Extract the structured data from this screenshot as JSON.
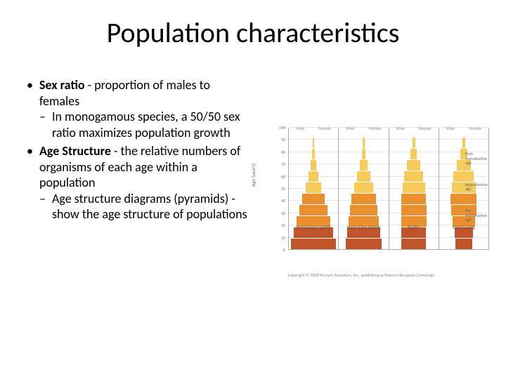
{
  "title": "Population characteristics",
  "bullets": [
    {
      "term": "Sex ratio",
      "rest": " - proportion of males to females",
      "sub": [
        "In monogamous species, a 50/50 sex ratio maximizes population growth"
      ]
    },
    {
      "term": "Age Structure",
      "rest": " - the relative numbers of organisms of each age within a population",
      "sub": [
        "Age structure diagrams (pyramids) - show the age structure of populations"
      ]
    }
  ],
  "figure": {
    "type": "pyramid-small-multiples",
    "background_color": "#ffffff",
    "axis_color": "#aaaaaa",
    "grid_color": "#e6e6e6",
    "text_color": "#666666",
    "ylabel": "Age (years)",
    "ylim": [
      0,
      100
    ],
    "ytick_step": 10,
    "yticks": [
      0,
      10,
      20,
      30,
      40,
      50,
      60,
      70,
      80,
      90,
      100
    ],
    "head_male": "Male",
    "head_female": "Female",
    "age_band_colors": {
      "pre_reproductive": "#c0532a",
      "reproductive": "#e98f2e",
      "post_reproductive": "#f7cb5a"
    },
    "age_band_breaks": [
      15,
      45
    ],
    "legend": {
      "post": "Post-reproductive age",
      "repro": "Reproductive age",
      "pre": "Pre-reproductive age"
    },
    "panels": [
      {
        "caption": "Increasing rapidly",
        "bars": [
          {
            "age": 0,
            "m": 48,
            "f": 48
          },
          {
            "age": 10,
            "m": 42,
            "f": 42
          },
          {
            "age": 20,
            "m": 36,
            "f": 36
          },
          {
            "age": 30,
            "m": 30,
            "f": 30
          },
          {
            "age": 40,
            "m": 24,
            "f": 24
          },
          {
            "age": 50,
            "m": 17,
            "f": 17
          },
          {
            "age": 60,
            "m": 11,
            "f": 11
          },
          {
            "age": 70,
            "m": 6,
            "f": 6
          },
          {
            "age": 80,
            "m": 3,
            "f": 3
          },
          {
            "age": 90,
            "m": 1,
            "f": 1
          }
        ]
      },
      {
        "caption": "Increasing slowly",
        "bars": [
          {
            "age": 0,
            "m": 38,
            "f": 38
          },
          {
            "age": 10,
            "m": 36,
            "f": 36
          },
          {
            "age": 20,
            "m": 33,
            "f": 33
          },
          {
            "age": 30,
            "m": 30,
            "f": 30
          },
          {
            "age": 40,
            "m": 26,
            "f": 26
          },
          {
            "age": 50,
            "m": 20,
            "f": 20
          },
          {
            "age": 60,
            "m": 14,
            "f": 14
          },
          {
            "age": 70,
            "m": 8,
            "f": 8
          },
          {
            "age": 80,
            "m": 4,
            "f": 4
          },
          {
            "age": 90,
            "m": 2,
            "f": 2
          }
        ]
      },
      {
        "caption": "Stable",
        "bars": [
          {
            "age": 0,
            "m": 26,
            "f": 26
          },
          {
            "age": 10,
            "m": 26,
            "f": 26
          },
          {
            "age": 20,
            "m": 27,
            "f": 27
          },
          {
            "age": 30,
            "m": 27,
            "f": 27
          },
          {
            "age": 40,
            "m": 26,
            "f": 26
          },
          {
            "age": 50,
            "m": 24,
            "f": 24
          },
          {
            "age": 60,
            "m": 20,
            "f": 20
          },
          {
            "age": 70,
            "m": 14,
            "f": 14
          },
          {
            "age": 80,
            "m": 7,
            "f": 7
          },
          {
            "age": 90,
            "m": 3,
            "f": 3
          }
        ]
      },
      {
        "caption": "Decreasing",
        "bars": [
          {
            "age": 0,
            "m": 18,
            "f": 18
          },
          {
            "age": 10,
            "m": 20,
            "f": 20
          },
          {
            "age": 20,
            "m": 24,
            "f": 24
          },
          {
            "age": 30,
            "m": 27,
            "f": 27
          },
          {
            "age": 40,
            "m": 28,
            "f": 28
          },
          {
            "age": 50,
            "m": 26,
            "f": 26
          },
          {
            "age": 60,
            "m": 22,
            "f": 22
          },
          {
            "age": 70,
            "m": 15,
            "f": 15
          },
          {
            "age": 80,
            "m": 8,
            "f": 8
          },
          {
            "age": 90,
            "m": 3,
            "f": 3
          }
        ]
      }
    ],
    "copyright": "Copyright © 2008 Pearson Education, Inc., publishing as Pearson Benjamin Cummings"
  }
}
